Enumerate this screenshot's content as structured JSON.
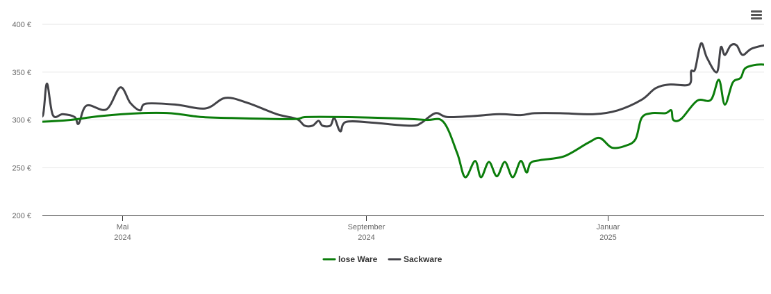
{
  "chart_data": {
    "type": "line",
    "title": "",
    "xlabel": "",
    "ylabel": "",
    "y_unit": "€",
    "ylim": [
      200,
      400
    ],
    "y_ticks": [
      {
        "value": 200,
        "label": "200 €"
      },
      {
        "value": 250,
        "label": "250 €"
      },
      {
        "value": 300,
        "label": "300 €"
      },
      {
        "value": 350,
        "label": "350 €"
      },
      {
        "value": 400,
        "label": "400 €"
      }
    ],
    "xlim": [
      "2024-03-01",
      "2025-03-31"
    ],
    "x_ticks": [
      {
        "date": "2024-05-01",
        "month": "Mai",
        "year": "2024"
      },
      {
        "date": "2024-09-01",
        "month": "September",
        "year": "2024"
      },
      {
        "date": "2025-01-01",
        "month": "Januar",
        "year": "2025"
      }
    ],
    "grid": true,
    "legend_position": "bottom-center",
    "series": [
      {
        "name": "lose Ware",
        "color": "#0b7d0b",
        "points": [
          [
            "2024-03-01",
            308
          ],
          [
            "2024-03-04",
            298
          ],
          [
            "2024-03-20",
            298
          ],
          [
            "2024-04-05",
            300
          ],
          [
            "2024-04-20",
            304
          ],
          [
            "2024-05-10",
            307
          ],
          [
            "2024-05-25",
            307
          ],
          [
            "2024-06-10",
            303
          ],
          [
            "2024-06-25",
            302
          ],
          [
            "2024-07-15",
            301
          ],
          [
            "2024-07-28",
            301
          ],
          [
            "2024-08-02",
            303
          ],
          [
            "2024-08-20",
            303
          ],
          [
            "2024-09-10",
            302
          ],
          [
            "2024-10-01",
            300
          ],
          [
            "2024-10-10",
            298
          ],
          [
            "2024-10-17",
            265
          ],
          [
            "2024-10-21",
            240
          ],
          [
            "2024-10-26",
            257
          ],
          [
            "2024-10-29",
            240
          ],
          [
            "2024-11-02",
            256
          ],
          [
            "2024-11-06",
            241
          ],
          [
            "2024-11-10",
            256
          ],
          [
            "2024-11-14",
            240
          ],
          [
            "2024-11-18",
            257
          ],
          [
            "2024-11-21",
            245
          ],
          [
            "2024-11-23",
            255
          ],
          [
            "2024-11-28",
            258
          ],
          [
            "2024-12-10",
            262
          ],
          [
            "2024-12-22",
            276
          ],
          [
            "2024-12-28",
            281
          ],
          [
            "2025-01-03",
            271
          ],
          [
            "2025-01-10",
            273
          ],
          [
            "2025-01-15",
            280
          ],
          [
            "2025-01-18",
            302
          ],
          [
            "2025-01-23",
            307
          ],
          [
            "2025-01-30",
            307
          ],
          [
            "2025-02-02",
            310
          ],
          [
            "2025-02-03",
            300
          ],
          [
            "2025-02-07",
            301
          ],
          [
            "2025-02-15",
            320
          ],
          [
            "2025-02-22",
            321
          ],
          [
            "2025-02-26",
            342
          ],
          [
            "2025-03-01",
            316
          ],
          [
            "2025-03-05",
            339
          ],
          [
            "2025-03-09",
            344
          ],
          [
            "2025-03-12",
            355
          ],
          [
            "2025-03-22",
            357
          ],
          [
            "2025-03-24",
            341
          ],
          [
            "2025-03-28",
            366
          ],
          [
            "2025-04-03",
            350
          ],
          [
            "2025-04-08",
            347
          ]
        ]
      },
      {
        "name": "Sackware",
        "color": "#434348",
        "points": [
          [
            "2024-03-01",
            288
          ],
          [
            "2024-03-03",
            308
          ],
          [
            "2024-03-08",
            307
          ],
          [
            "2024-03-15",
            309
          ],
          [
            "2024-03-17",
            298
          ],
          [
            "2024-03-19",
            307
          ],
          [
            "2024-03-22",
            305
          ],
          [
            "2024-03-24",
            338
          ],
          [
            "2024-03-27",
            305
          ],
          [
            "2024-04-01",
            306
          ],
          [
            "2024-04-07",
            303
          ],
          [
            "2024-04-09",
            296
          ],
          [
            "2024-04-13",
            315
          ],
          [
            "2024-04-23",
            311
          ],
          [
            "2024-04-30",
            334
          ],
          [
            "2024-05-05",
            318
          ],
          [
            "2024-05-10",
            310
          ],
          [
            "2024-05-13",
            317
          ],
          [
            "2024-05-28",
            316
          ],
          [
            "2024-06-12",
            312
          ],
          [
            "2024-06-22",
            323
          ],
          [
            "2024-07-03",
            318
          ],
          [
            "2024-07-18",
            306
          ],
          [
            "2024-07-28",
            301
          ],
          [
            "2024-08-01",
            294
          ],
          [
            "2024-08-05",
            294
          ],
          [
            "2024-08-08",
            299
          ],
          [
            "2024-08-10",
            294
          ],
          [
            "2024-08-14",
            294
          ],
          [
            "2024-08-16",
            302
          ],
          [
            "2024-08-19",
            288
          ],
          [
            "2024-08-22",
            298
          ],
          [
            "2024-09-05",
            297
          ],
          [
            "2024-09-15",
            295
          ],
          [
            "2024-09-25",
            294
          ],
          [
            "2024-09-29",
            297
          ],
          [
            "2024-10-06",
            307
          ],
          [
            "2024-10-12",
            303
          ],
          [
            "2024-10-25",
            304
          ],
          [
            "2024-11-07",
            306
          ],
          [
            "2024-11-18",
            305
          ],
          [
            "2024-11-25",
            307
          ],
          [
            "2024-12-08",
            307
          ],
          [
            "2024-12-25",
            306
          ],
          [
            "2025-01-06",
            310
          ],
          [
            "2025-01-18",
            321
          ],
          [
            "2025-01-25",
            333
          ],
          [
            "2025-02-01",
            337
          ],
          [
            "2025-02-11",
            337
          ],
          [
            "2025-02-12",
            351
          ],
          [
            "2025-02-14",
            353
          ],
          [
            "2025-02-17",
            380
          ],
          [
            "2025-02-20",
            365
          ],
          [
            "2025-02-25",
            350
          ],
          [
            "2025-02-27",
            376
          ],
          [
            "2025-03-01",
            368
          ],
          [
            "2025-03-04",
            378
          ],
          [
            "2025-03-07",
            378
          ],
          [
            "2025-03-10",
            368
          ],
          [
            "2025-03-15",
            375
          ],
          [
            "2025-03-25",
            378
          ],
          [
            "2025-04-03",
            368
          ],
          [
            "2025-04-08",
            364
          ]
        ]
      }
    ]
  }
}
